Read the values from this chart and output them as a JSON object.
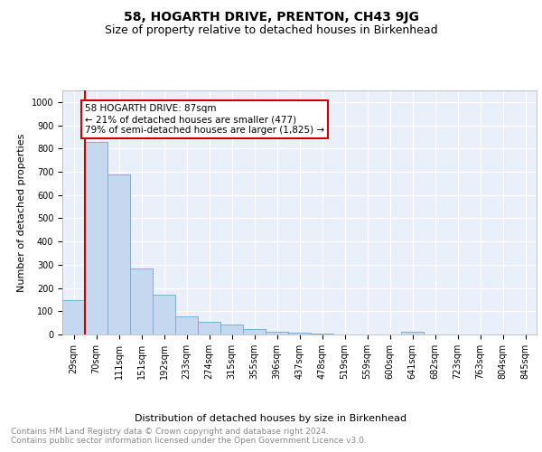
{
  "title": "58, HOGARTH DRIVE, PRENTON, CH43 9JG",
  "subtitle": "Size of property relative to detached houses in Birkenhead",
  "xlabel": "Distribution of detached houses by size in Birkenhead",
  "ylabel": "Number of detached properties",
  "bar_labels": [
    "29sqm",
    "70sqm",
    "111sqm",
    "151sqm",
    "192sqm",
    "233sqm",
    "274sqm",
    "315sqm",
    "355sqm",
    "396sqm",
    "437sqm",
    "478sqm",
    "519sqm",
    "559sqm",
    "600sqm",
    "641sqm",
    "682sqm",
    "723sqm",
    "763sqm",
    "804sqm",
    "845sqm"
  ],
  "bar_values": [
    148,
    828,
    688,
    284,
    173,
    78,
    53,
    42,
    22,
    12,
    7,
    5,
    0,
    0,
    0,
    10,
    0,
    0,
    0,
    0,
    0
  ],
  "bar_color": "#c5d8f0",
  "bar_edge_color": "#7bafd4",
  "property_line_x": 1.0,
  "annotation_text": "58 HOGARTH DRIVE: 87sqm\n← 21% of detached houses are smaller (477)\n79% of semi-detached houses are larger (1,825) →",
  "annotation_box_color": "#ffffff",
  "annotation_box_edge_color": "#cc0000",
  "ylim": [
    0,
    1050
  ],
  "yticks": [
    0,
    100,
    200,
    300,
    400,
    500,
    600,
    700,
    800,
    900,
    1000
  ],
  "background_color": "#eaf0fa",
  "grid_color": "#ffffff",
  "footer_text": "Contains HM Land Registry data © Crown copyright and database right 2024.\nContains public sector information licensed under the Open Government Licence v3.0.",
  "title_fontsize": 10,
  "subtitle_fontsize": 9,
  "axis_label_fontsize": 8,
  "tick_fontsize": 7,
  "annotation_fontsize": 7.5,
  "footer_fontsize": 6.5
}
